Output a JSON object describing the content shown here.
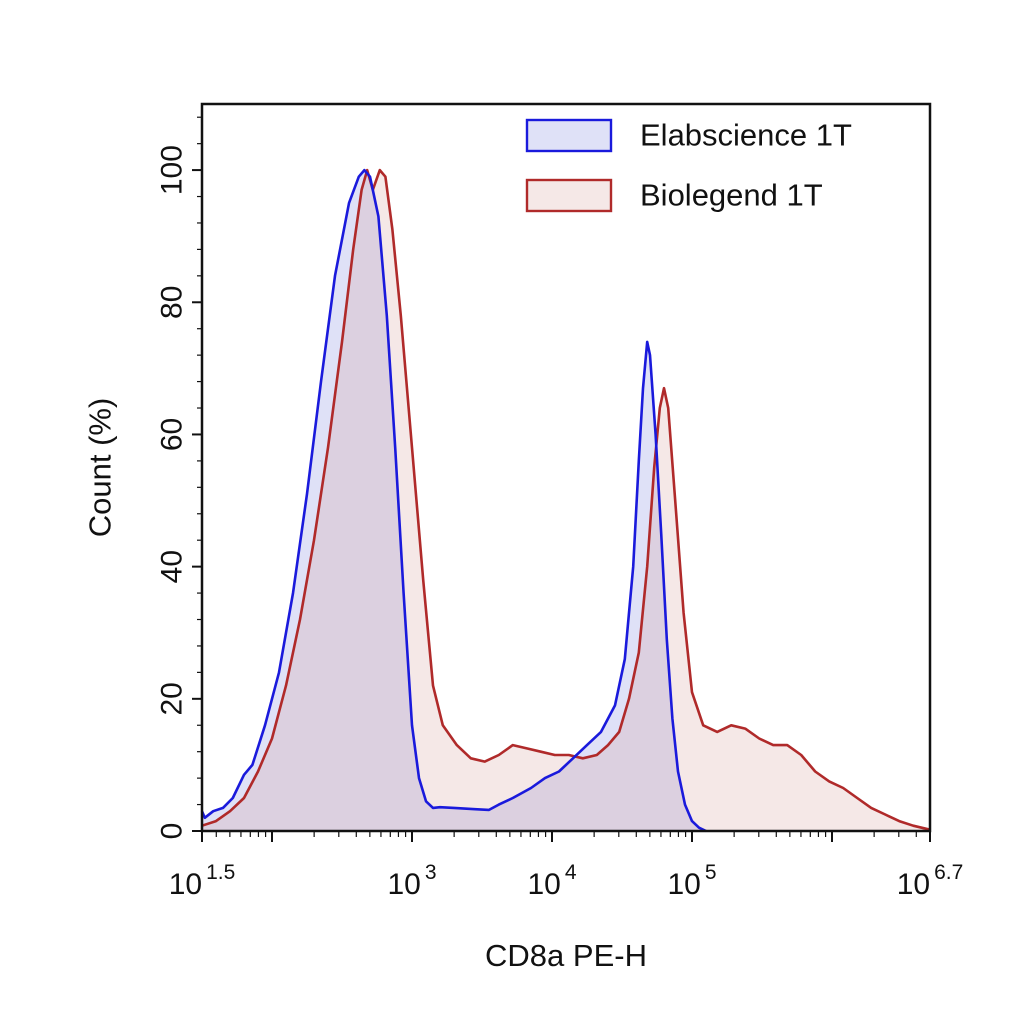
{
  "chart_data": {
    "type": "area",
    "xlabel": "CD8a PE-H",
    "ylabel": "Count  (%)",
    "xscale": "log10",
    "xlim": [
      1.5,
      6.7
    ],
    "ylim": [
      0,
      110
    ],
    "x_ticks": [
      {
        "base": "10",
        "exp": "1.5",
        "value": 1.5
      },
      {
        "base": "10",
        "exp": "3",
        "value": 3
      },
      {
        "base": "10",
        "exp": "4",
        "value": 4
      },
      {
        "base": "10",
        "exp": "5",
        "value": 5
      },
      {
        "base": "10",
        "exp": "6.7",
        "value": 6.7
      }
    ],
    "y_ticks": [
      "0",
      "20",
      "40",
      "60",
      "80",
      "100"
    ],
    "grid": false,
    "legend": "top-right",
    "series": [
      {
        "name": "Elabscience 1T",
        "stroke": "#1a1adc",
        "fill": "rgba(110, 120, 220, 0.22)",
        "points": [
          [
            1.5,
            3
          ],
          [
            1.52,
            2
          ],
          [
            1.58,
            3
          ],
          [
            1.65,
            3.5
          ],
          [
            1.72,
            5
          ],
          [
            1.8,
            8.5
          ],
          [
            1.86,
            10
          ],
          [
            1.95,
            16
          ],
          [
            2.05,
            24
          ],
          [
            2.15,
            36
          ],
          [
            2.25,
            51
          ],
          [
            2.35,
            68
          ],
          [
            2.45,
            84
          ],
          [
            2.55,
            95
          ],
          [
            2.62,
            99
          ],
          [
            2.66,
            100
          ],
          [
            2.7,
            99
          ],
          [
            2.76,
            93
          ],
          [
            2.82,
            78
          ],
          [
            2.88,
            58
          ],
          [
            2.94,
            36
          ],
          [
            3.0,
            16
          ],
          [
            3.05,
            8
          ],
          [
            3.1,
            4.5
          ],
          [
            3.15,
            3.5
          ],
          [
            3.2,
            3.6
          ],
          [
            3.3,
            3.5
          ],
          [
            3.45,
            3.3
          ],
          [
            3.55,
            3.2
          ],
          [
            3.62,
            4
          ],
          [
            3.72,
            5
          ],
          [
            3.85,
            6.5
          ],
          [
            3.95,
            8
          ],
          [
            4.05,
            9
          ],
          [
            4.15,
            11
          ],
          [
            4.25,
            13
          ],
          [
            4.35,
            15
          ],
          [
            4.45,
            19
          ],
          [
            4.52,
            26
          ],
          [
            4.58,
            40
          ],
          [
            4.62,
            56
          ],
          [
            4.65,
            67
          ],
          [
            4.68,
            74
          ],
          [
            4.7,
            72
          ],
          [
            4.74,
            60
          ],
          [
            4.78,
            45
          ],
          [
            4.82,
            29
          ],
          [
            4.86,
            17
          ],
          [
            4.9,
            9
          ],
          [
            4.95,
            4
          ],
          [
            5.0,
            1.5
          ],
          [
            5.05,
            0.5
          ],
          [
            5.1,
            0
          ]
        ]
      },
      {
        "name": "Biolegend 1T",
        "stroke": "#b02a2a",
        "fill": "rgba(210, 150, 145, 0.22)",
        "points": [
          [
            1.5,
            0.8
          ],
          [
            1.6,
            1.5
          ],
          [
            1.7,
            3
          ],
          [
            1.8,
            5
          ],
          [
            1.9,
            9
          ],
          [
            2.0,
            14
          ],
          [
            2.1,
            22
          ],
          [
            2.2,
            32
          ],
          [
            2.3,
            44
          ],
          [
            2.4,
            58
          ],
          [
            2.5,
            74
          ],
          [
            2.58,
            88
          ],
          [
            2.64,
            97
          ],
          [
            2.68,
            100
          ],
          [
            2.72,
            97
          ],
          [
            2.77,
            100
          ],
          [
            2.81,
            99
          ],
          [
            2.86,
            91
          ],
          [
            2.92,
            78
          ],
          [
            3.0,
            58
          ],
          [
            3.08,
            38
          ],
          [
            3.15,
            22
          ],
          [
            3.22,
            16
          ],
          [
            3.32,
            13
          ],
          [
            3.42,
            11
          ],
          [
            3.52,
            10.5
          ],
          [
            3.62,
            11.5
          ],
          [
            3.72,
            13
          ],
          [
            3.82,
            12.5
          ],
          [
            3.92,
            12
          ],
          [
            4.02,
            11.5
          ],
          [
            4.12,
            11.5
          ],
          [
            4.22,
            11
          ],
          [
            4.32,
            11.5
          ],
          [
            4.4,
            13
          ],
          [
            4.48,
            15
          ],
          [
            4.55,
            20
          ],
          [
            4.62,
            27
          ],
          [
            4.68,
            40
          ],
          [
            4.73,
            55
          ],
          [
            4.77,
            64
          ],
          [
            4.8,
            67
          ],
          [
            4.83,
            64
          ],
          [
            4.88,
            50
          ],
          [
            4.94,
            33
          ],
          [
            5.0,
            21
          ],
          [
            5.08,
            16
          ],
          [
            5.18,
            15
          ],
          [
            5.28,
            16
          ],
          [
            5.38,
            15.5
          ],
          [
            5.48,
            14
          ],
          [
            5.58,
            13
          ],
          [
            5.68,
            13
          ],
          [
            5.78,
            11.5
          ],
          [
            5.88,
            9
          ],
          [
            5.98,
            7.5
          ],
          [
            6.08,
            6.5
          ],
          [
            6.18,
            5
          ],
          [
            6.28,
            3.5
          ],
          [
            6.38,
            2.5
          ],
          [
            6.48,
            1.5
          ],
          [
            6.58,
            0.8
          ],
          [
            6.7,
            0.2
          ]
        ]
      }
    ]
  }
}
